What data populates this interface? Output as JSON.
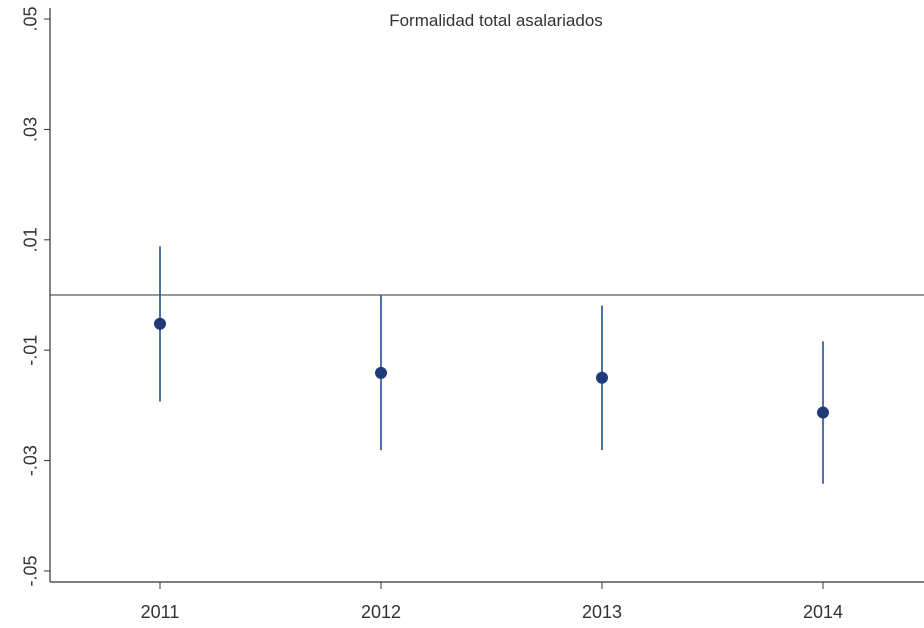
{
  "chart_data": {
    "type": "scatter",
    "title": "Formalidad total asalariados",
    "xlabel": "",
    "ylabel": "",
    "categories": [
      "2011",
      "2012",
      "2013",
      "2014"
    ],
    "series": [
      {
        "values": [
          -0.0052,
          -0.0141,
          -0.015,
          -0.0213
        ],
        "ci_low": [
          -0.0193,
          -0.0281,
          -0.0281,
          -0.0342
        ],
        "ci_high": [
          0.0088,
          0.0,
          -0.0019,
          -0.0084
        ]
      }
    ],
    "reference_line": 0,
    "ylim": [
      -0.052,
      0.052
    ],
    "y_ticks": [
      0.05,
      0.03,
      0.01,
      -0.01,
      -0.03,
      -0.05
    ],
    "y_tick_labels": [
      ".05",
      ".03",
      ".01",
      "-.01",
      "-.03",
      "-.05"
    ],
    "grid": false,
    "legend": "none",
    "colors": {
      "point": "#1f3a78",
      "ci_line": "#1f4f8f",
      "axis": "#333333",
      "reference_line": "#333333"
    }
  }
}
